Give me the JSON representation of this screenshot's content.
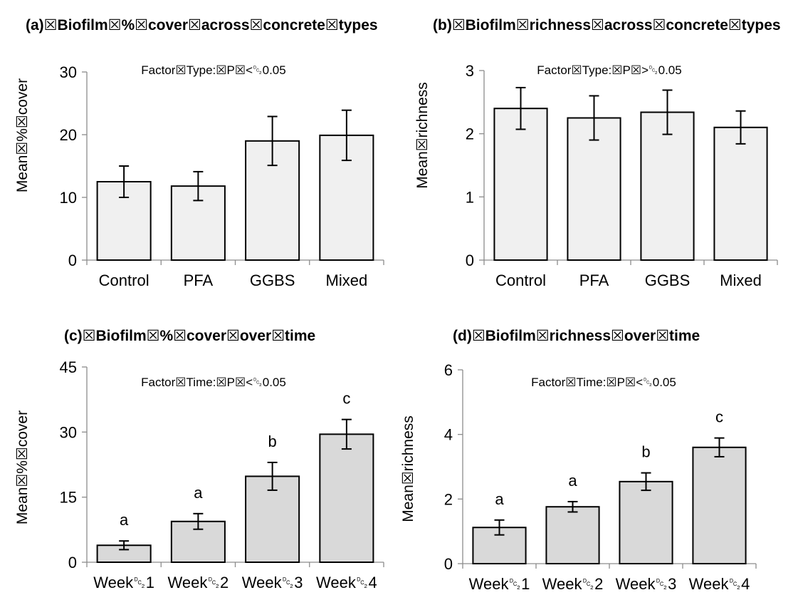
{
  "chart_data": [
    {
      "type": "bar",
      "title": "(a)☒Biofilm☒%☒cover☒across☒concrete☒types",
      "ylabel": "Mean☒%☒cover",
      "annotation": "Factor☒Type:☒P☒<␒0.05",
      "categories": [
        "Control",
        "PFA",
        "GGBS",
        "Mixed"
      ],
      "values": [
        12.5,
        11.8,
        19.0,
        19.9
      ],
      "errors": [
        2.5,
        2.3,
        3.9,
        4.0
      ],
      "ylim": [
        0,
        30
      ],
      "yticks": [
        "0",
        "10",
        "20",
        "30"
      ],
      "bar_color": "#f0f0f0",
      "letters": []
    },
    {
      "type": "bar",
      "title": "(b)☒Biofilm☒richness☒across☒concrete☒types",
      "ylabel": "Mean☒richness",
      "annotation": "Factor☒Type:☒P☒>␒0.05",
      "categories": [
        "Control",
        "PFA",
        "GGBS",
        "Mixed"
      ],
      "values": [
        2.4,
        2.25,
        2.34,
        2.1
      ],
      "errors": [
        0.33,
        0.35,
        0.35,
        0.26
      ],
      "ylim": [
        0,
        3
      ],
      "yticks": [
        "0",
        "1",
        "2",
        "3"
      ],
      "bar_color": "#f0f0f0",
      "letters": []
    },
    {
      "type": "bar",
      "title": "(c)☒Biofilm☒%☒cover☒over☒time",
      "ylabel": "Mean☒%☒cover",
      "annotation": "Factor☒Time:☒P☒<␒0.05",
      "categories": [
        "Week␒1",
        "Week␒2",
        "Week␒3",
        "Week␒4"
      ],
      "values": [
        3.9,
        9.4,
        19.8,
        29.5
      ],
      "errors": [
        1.0,
        1.8,
        3.2,
        3.4
      ],
      "ylim": [
        0,
        45
      ],
      "yticks": [
        "0",
        "15",
        "30",
        "45"
      ],
      "bar_color": "#d9d9d9",
      "letters": [
        "a",
        "a",
        "b",
        "c"
      ]
    },
    {
      "type": "bar",
      "title": "(d)☒Biofilm☒richness☒over☒time",
      "ylabel": "Mean☒richness",
      "annotation": "Factor☒Time:☒P☒<␒0.05",
      "categories": [
        "Week␒1",
        "Week␒2",
        "Week␒3",
        "Week␒4"
      ],
      "values": [
        1.12,
        1.76,
        2.54,
        3.6
      ],
      "errors": [
        0.23,
        0.16,
        0.27,
        0.29
      ],
      "ylim": [
        0,
        6
      ],
      "yticks": [
        "0",
        "2",
        "4",
        "6"
      ],
      "bar_color": "#d9d9d9",
      "letters": [
        "a",
        "a",
        "b",
        "c"
      ]
    }
  ]
}
